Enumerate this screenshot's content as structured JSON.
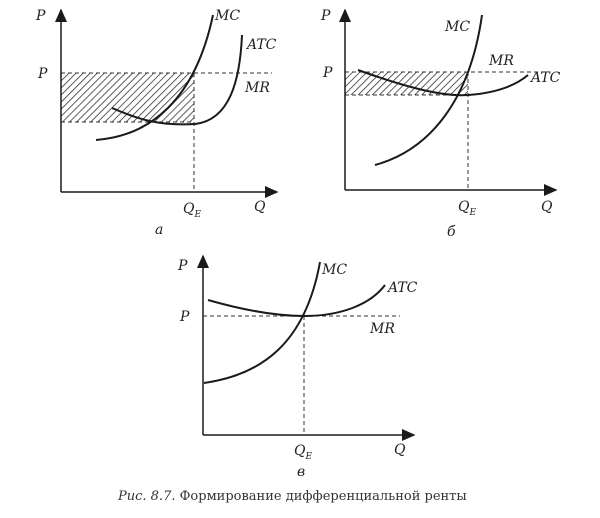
{
  "panels": [
    {
      "id": "a",
      "label": "а",
      "y_axis": "P",
      "x_axis": "Q",
      "price": "P",
      "quantity": "Q",
      "quantity_sub": "E",
      "curves": {
        "mc": "MC",
        "atc": "ATC",
        "mr": "MR"
      }
    },
    {
      "id": "b",
      "label": "б",
      "y_axis": "P",
      "x_axis": "Q",
      "price": "P",
      "quantity": "Q",
      "quantity_sub": "E",
      "curves": {
        "mc": "MC",
        "atc": "ATC",
        "mr": "MR"
      }
    },
    {
      "id": "c",
      "label": "в",
      "y_axis": "P",
      "x_axis": "Q",
      "price": "P",
      "quantity": "Q",
      "quantity_sub": "E",
      "curves": {
        "mc": "MC",
        "atc": "ATC",
        "mr": "MR"
      }
    }
  ],
  "caption": {
    "prefix": "Рис. 8.7.",
    "text": "Формирование дифференциальной ренты"
  }
}
